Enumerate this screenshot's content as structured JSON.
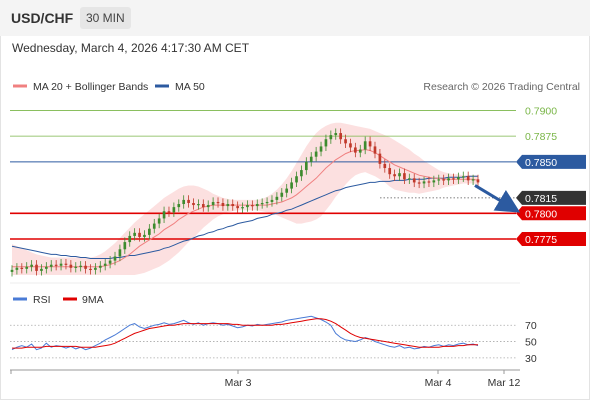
{
  "header": {
    "symbol": "USD/CHF",
    "timeframe": "30 MIN"
  },
  "datetime": "Wednesday, March 4, 2026 4:17:30 AM CET",
  "legend": {
    "ma20": "MA 20 + Bollinger Bands",
    "ma50": "MA 50",
    "credit": "Research © 2026 Trading Central",
    "rsi": "RSI",
    "rsi_ma": "9MA"
  },
  "colors": {
    "ma20": "#f08080",
    "ma50": "#2c5aa0",
    "band": "#fbd6d6",
    "bull": "#3d8b2e",
    "bear": "#c0392b",
    "green_level": "#7ab648",
    "red_level": "#e00000",
    "current": "#333333",
    "rsi": "#4a7bd6",
    "rsi_ma": "#e00000",
    "arrow": "#2c5aa0"
  },
  "chart_data": [
    {
      "type": "candlestick",
      "ylim": [
        0.774,
        0.7915
      ],
      "x_labels": [
        "Mar 3",
        "Mar 4",
        "Mar 12"
      ],
      "levels": [
        {
          "value": 0.79,
          "label": "0.7900",
          "kind": "resistance-green"
        },
        {
          "value": 0.7875,
          "label": "0.7875",
          "kind": "resistance-green"
        },
        {
          "value": 0.785,
          "label": "0.7850",
          "kind": "ma50-level"
        },
        {
          "value": 0.7815,
          "label": "0.7815",
          "kind": "current"
        },
        {
          "value": 0.78,
          "label": "0.7800",
          "kind": "support-red"
        },
        {
          "value": 0.7775,
          "label": "0.7775",
          "kind": "support-red"
        }
      ],
      "close": [
        0.7745,
        0.7747,
        0.7746,
        0.7748,
        0.775,
        0.7744,
        0.7746,
        0.7748,
        0.775,
        0.7749,
        0.7751,
        0.775,
        0.7747,
        0.7748,
        0.7749,
        0.7746,
        0.7745,
        0.7747,
        0.7749,
        0.7751,
        0.7754,
        0.7758,
        0.7765,
        0.7772,
        0.7778,
        0.7781,
        0.7777,
        0.7779,
        0.7785,
        0.779,
        0.7795,
        0.7802,
        0.7801,
        0.7806,
        0.7809,
        0.7813,
        0.781,
        0.7808,
        0.7809,
        0.7806,
        0.7808,
        0.7811,
        0.781,
        0.7807,
        0.7809,
        0.7807,
        0.7805,
        0.7806,
        0.7808,
        0.7807,
        0.7809,
        0.781,
        0.7811,
        0.7813,
        0.7816,
        0.782,
        0.7824,
        0.783,
        0.7836,
        0.7842,
        0.785,
        0.7855,
        0.786,
        0.7865,
        0.7872,
        0.7876,
        0.7878,
        0.7872,
        0.7868,
        0.7864,
        0.7859,
        0.7862,
        0.787,
        0.7865,
        0.7858,
        0.7848,
        0.7844,
        0.7838,
        0.7836,
        0.7839,
        0.7833,
        0.7834,
        0.783,
        0.7829,
        0.7831,
        0.783,
        0.7832,
        0.7833,
        0.7832,
        0.7834,
        0.7833,
        0.7835,
        0.7836,
        0.7832,
        0.7833,
        0.783
      ],
      "ma20": [
        0.7748,
        0.7748,
        0.7748,
        0.7748,
        0.7748,
        0.7748,
        0.7748,
        0.7748,
        0.7748,
        0.7748,
        0.7748,
        0.7748,
        0.7748,
        0.7748,
        0.7748,
        0.7748,
        0.7748,
        0.7748,
        0.7748,
        0.7749,
        0.775,
        0.7752,
        0.7754,
        0.7757,
        0.776,
        0.7764,
        0.7768,
        0.7771,
        0.7774,
        0.7777,
        0.778,
        0.7784,
        0.7787,
        0.779,
        0.7794,
        0.7797,
        0.78,
        0.7802,
        0.7804,
        0.7806,
        0.7807,
        0.7808,
        0.7808,
        0.7808,
        0.7808,
        0.7808,
        0.7808,
        0.7808,
        0.7808,
        0.7808,
        0.7808,
        0.7808,
        0.7808,
        0.7809,
        0.781,
        0.7811,
        0.7813,
        0.7815,
        0.7818,
        0.7822,
        0.7826,
        0.783,
        0.7834,
        0.7839,
        0.7844,
        0.7848,
        0.7852,
        0.7855,
        0.7858,
        0.786,
        0.7861,
        0.7861,
        0.7862,
        0.7861,
        0.7859,
        0.7856,
        0.7853,
        0.785,
        0.7847,
        0.7845,
        0.7843,
        0.7841,
        0.7839,
        0.7837,
        0.7836,
        0.7835,
        0.7834,
        0.7834,
        0.7833,
        0.7833,
        0.7833,
        0.7833,
        0.7833,
        0.7833,
        0.7833,
        0.7832
      ],
      "ma50": [
        0.7768,
        0.7767,
        0.7766,
        0.7765,
        0.7764,
        0.7763,
        0.7762,
        0.7761,
        0.776,
        0.776,
        0.7759,
        0.7759,
        0.7758,
        0.7758,
        0.7757,
        0.7757,
        0.7756,
        0.7756,
        0.7756,
        0.7756,
        0.7756,
        0.7757,
        0.7757,
        0.7758,
        0.7759,
        0.7759,
        0.776,
        0.7761,
        0.7762,
        0.7763,
        0.7764,
        0.7766,
        0.7767,
        0.7769,
        0.7771,
        0.7773,
        0.7774,
        0.7776,
        0.7778,
        0.7779,
        0.7781,
        0.7782,
        0.7784,
        0.7785,
        0.7787,
        0.7788,
        0.779,
        0.7791,
        0.7792,
        0.7793,
        0.7795,
        0.7796,
        0.7797,
        0.7799,
        0.78,
        0.7801,
        0.7803,
        0.7804,
        0.7806,
        0.7808,
        0.781,
        0.7812,
        0.7814,
        0.7816,
        0.7818,
        0.782,
        0.7822,
        0.7823,
        0.7825,
        0.7826,
        0.7827,
        0.7828,
        0.7829,
        0.783,
        0.783,
        0.7831,
        0.7831,
        0.7831,
        0.7832,
        0.7832,
        0.7832,
        0.7833,
        0.7833,
        0.7833,
        0.7833,
        0.7834,
        0.7834,
        0.7834,
        0.7834,
        0.7835,
        0.7835,
        0.7835,
        0.7835,
        0.7836,
        0.7836,
        0.7836
      ],
      "band_upper": [
        0.777,
        0.7768,
        0.7766,
        0.7764,
        0.7762,
        0.776,
        0.7759,
        0.7758,
        0.7757,
        0.7757,
        0.7757,
        0.7757,
        0.7757,
        0.7757,
        0.7757,
        0.7757,
        0.7757,
        0.7758,
        0.776,
        0.7763,
        0.7767,
        0.7771,
        0.7776,
        0.7781,
        0.7786,
        0.7791,
        0.7795,
        0.7799,
        0.7803,
        0.7807,
        0.7811,
        0.7815,
        0.7818,
        0.7821,
        0.7824,
        0.7826,
        0.7827,
        0.7827,
        0.7826,
        0.7824,
        0.7822,
        0.7819,
        0.7817,
        0.7815,
        0.7814,
        0.7813,
        0.7813,
        0.7813,
        0.7813,
        0.7813,
        0.7813,
        0.7814,
        0.7816,
        0.7819,
        0.7823,
        0.7828,
        0.7834,
        0.7841,
        0.7849,
        0.7857,
        0.7865,
        0.7872,
        0.7878,
        0.7882,
        0.7885,
        0.7887,
        0.7888,
        0.7888,
        0.7887,
        0.7886,
        0.7885,
        0.7884,
        0.7883,
        0.7882,
        0.788,
        0.7878,
        0.7876,
        0.7874,
        0.7871,
        0.7868,
        0.7865,
        0.7862,
        0.7858,
        0.7855,
        0.7851,
        0.7848,
        0.7845,
        0.7842,
        0.784,
        0.7839,
        0.7838,
        0.7838,
        0.7837,
        0.7837,
        0.7837,
        0.7837
      ],
      "band_lower": [
        0.774,
        0.774,
        0.774,
        0.774,
        0.774,
        0.774,
        0.774,
        0.774,
        0.774,
        0.774,
        0.774,
        0.774,
        0.774,
        0.774,
        0.774,
        0.774,
        0.774,
        0.774,
        0.774,
        0.774,
        0.774,
        0.774,
        0.774,
        0.774,
        0.774,
        0.774,
        0.7741,
        0.7742,
        0.7744,
        0.7746,
        0.7748,
        0.7751,
        0.7754,
        0.7758,
        0.7762,
        0.7767,
        0.7772,
        0.7776,
        0.7781,
        0.7786,
        0.779,
        0.7794,
        0.7797,
        0.7799,
        0.7801,
        0.7802,
        0.7803,
        0.7803,
        0.7803,
        0.7803,
        0.7803,
        0.7802,
        0.7801,
        0.78,
        0.7798,
        0.7796,
        0.7794,
        0.7792,
        0.779,
        0.779,
        0.7791,
        0.7792,
        0.7794,
        0.7797,
        0.7803,
        0.7809,
        0.7816,
        0.7822,
        0.7828,
        0.7833,
        0.7837,
        0.7839,
        0.784,
        0.7838,
        0.7836,
        0.7833,
        0.783,
        0.7826,
        0.7823,
        0.7822,
        0.7821,
        0.782,
        0.782,
        0.7819,
        0.782,
        0.7821,
        0.7822,
        0.7823,
        0.7825,
        0.7826,
        0.7827,
        0.7828,
        0.7829,
        0.7829,
        0.7829,
        0.7828
      ]
    },
    {
      "type": "line",
      "ylim": [
        20,
        85
      ],
      "y_ticks": [
        70,
        50,
        30
      ],
      "series": [
        {
          "name": "RSI",
          "values": [
            40,
            43,
            45,
            43,
            47,
            40,
            42,
            48,
            43,
            45,
            44,
            42,
            44,
            41,
            43,
            40,
            42,
            45,
            48,
            52,
            55,
            58,
            62,
            66,
            70,
            72,
            68,
            66,
            68,
            70,
            71,
            73,
            71,
            72,
            74,
            76,
            73,
            71,
            73,
            70,
            72,
            73,
            72,
            70,
            71,
            69,
            67,
            68,
            70,
            69,
            71,
            70,
            71,
            72,
            73,
            74,
            76,
            77,
            78,
            79,
            80,
            81,
            79,
            77,
            74,
            70,
            60,
            55,
            52,
            51,
            50,
            52,
            55,
            53,
            50,
            48,
            46,
            44,
            43,
            45,
            42,
            43,
            41,
            42,
            44,
            43,
            45,
            46,
            44,
            46,
            45,
            47,
            48,
            46,
            47,
            45
          ]
        },
        {
          "name": "9MA",
          "values": [
            42,
            42,
            42,
            43,
            43,
            43,
            43,
            44,
            44,
            44,
            44,
            44,
            44,
            44,
            43,
            43,
            43,
            43,
            44,
            45,
            46,
            48,
            51,
            54,
            57,
            60,
            62,
            64,
            66,
            67,
            68,
            69,
            70,
            70,
            71,
            72,
            72,
            72,
            72,
            72,
            72,
            72,
            72,
            72,
            72,
            71,
            71,
            70,
            70,
            70,
            70,
            70,
            70,
            70,
            71,
            71,
            72,
            73,
            74,
            75,
            76,
            77,
            78,
            78,
            77,
            75,
            72,
            68,
            64,
            60,
            57,
            55,
            54,
            53,
            52,
            51,
            50,
            49,
            48,
            47,
            46,
            45,
            44,
            43,
            43,
            43,
            43,
            43,
            44,
            44,
            44,
            45,
            45,
            46,
            46,
            46
          ]
        }
      ]
    }
  ]
}
